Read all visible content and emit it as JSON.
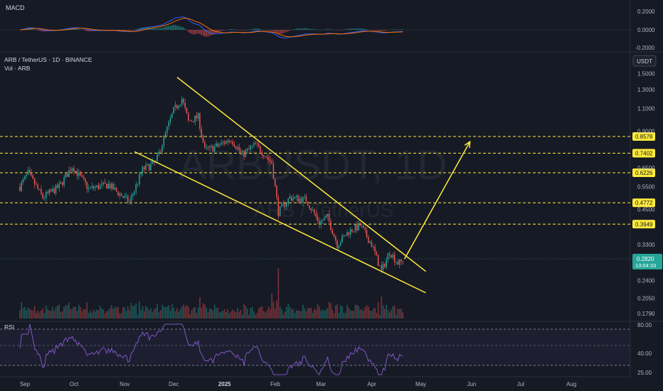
{
  "header": {
    "symbol_line": "ARB / TetherUS · 1D · BINANCE",
    "volume_label": "Vol · ARB",
    "currency_button": "USDT"
  },
  "watermark": {
    "main": "ARBUSDT, 1D",
    "sub": "ARB / TetherUS"
  },
  "macd_panel": {
    "label": "MACD",
    "ticks": [
      "0.2000",
      "0.0000",
      "-0.2000"
    ],
    "tick_values": [
      0.2,
      0.0,
      -0.2
    ]
  },
  "rsi_panel": {
    "label": "RSI",
    "ticks": [
      "80.00",
      "40.00",
      "25.00"
    ],
    "tick_values": [
      80,
      40,
      25
    ]
  },
  "price_axis": {
    "ticks": [
      "1.5000",
      "1.3000",
      "1.1000",
      "0.9000",
      "0.6500",
      "0.5500",
      "0.4500",
      "0.3300",
      "0.2400",
      "0.2050",
      "0.1790"
    ],
    "tick_values": [
      1.5,
      1.3,
      1.1,
      0.9,
      0.65,
      0.55,
      0.45,
      0.33,
      0.24,
      0.205,
      0.179
    ]
  },
  "levels": [
    {
      "label": "0.8578",
      "value": 0.8578
    },
    {
      "label": "0.7402",
      "value": 0.7402
    },
    {
      "label": "0.6226",
      "value": 0.6226
    },
    {
      "label": "0.4772",
      "value": 0.4772
    },
    {
      "label": "0.3949",
      "value": 0.3949
    }
  ],
  "current_price": {
    "label": "0.2820",
    "countdown": "13:04:33",
    "value": 0.282
  },
  "time_axis": {
    "labels": [
      "Sep",
      "Oct",
      "Nov",
      "Dec",
      "2025",
      "Feb",
      "Mar",
      "Apr",
      "May",
      "Jun",
      "Jul",
      "Aug"
    ]
  },
  "colors": {
    "background": "#161a25",
    "up": "#26a69a",
    "down": "#ef5350",
    "drawing": "#ffeb3b",
    "macd": "#2962ff",
    "signal": "#ff6d00",
    "rsi": "#7e57c2",
    "grid": "#2a2e39",
    "axis_text": "#b2b5be"
  },
  "chart_data": {
    "type": "candlestick",
    "symbol": "ARB / TetherUS",
    "interval": "1D",
    "exchange": "BINANCE",
    "price_scale": "log",
    "ylim": [
      0.175,
      1.6
    ],
    "x_labels": [
      "Sep",
      "Oct",
      "Nov",
      "Dec",
      "2025",
      "Feb",
      "Mar",
      "Apr",
      "May",
      "Jun",
      "Jul",
      "Aug"
    ],
    "price_anchors": [
      {
        "date": "2024-08-29",
        "close": 0.55
      },
      {
        "date": "2024-09-03",
        "close": 0.62
      },
      {
        "date": "2024-09-12",
        "close": 0.5
      },
      {
        "date": "2024-09-22",
        "close": 0.55
      },
      {
        "date": "2024-09-30",
        "close": 0.66
      },
      {
        "date": "2024-10-10",
        "close": 0.54
      },
      {
        "date": "2024-10-22",
        "close": 0.56
      },
      {
        "date": "2024-11-04",
        "close": 0.48
      },
      {
        "date": "2024-11-12",
        "close": 0.64
      },
      {
        "date": "2024-11-20",
        "close": 0.68
      },
      {
        "date": "2024-11-26",
        "close": 0.88
      },
      {
        "date": "2024-12-01",
        "close": 1.08
      },
      {
        "date": "2024-12-06",
        "close": 1.2
      },
      {
        "date": "2024-12-10",
        "close": 0.98
      },
      {
        "date": "2024-12-16",
        "close": 1.02
      },
      {
        "date": "2024-12-20",
        "close": 0.76
      },
      {
        "date": "2024-12-26",
        "close": 0.78
      },
      {
        "date": "2025-01-05",
        "close": 0.84
      },
      {
        "date": "2025-01-12",
        "close": 0.73
      },
      {
        "date": "2025-01-20",
        "close": 0.8
      },
      {
        "date": "2025-01-30",
        "close": 0.68
      },
      {
        "date": "2025-02-03",
        "close": 0.44
      },
      {
        "date": "2025-02-10",
        "close": 0.5
      },
      {
        "date": "2025-02-20",
        "close": 0.49
      },
      {
        "date": "2025-02-28",
        "close": 0.4
      },
      {
        "date": "2025-03-05",
        "close": 0.42
      },
      {
        "date": "2025-03-11",
        "close": 0.33
      },
      {
        "date": "2025-03-18",
        "close": 0.37
      },
      {
        "date": "2025-03-25",
        "close": 0.39
      },
      {
        "date": "2025-04-01",
        "close": 0.33
      },
      {
        "date": "2025-04-07",
        "close": 0.26
      },
      {
        "date": "2025-04-12",
        "close": 0.31
      },
      {
        "date": "2025-04-17",
        "close": 0.28
      },
      {
        "date": "2025-04-20",
        "close": 0.282
      }
    ],
    "wedge": {
      "upper": [
        {
          "date": "2024-12-03",
          "price": 1.45
        },
        {
          "date": "2025-05-04",
          "price": 0.26
        }
      ],
      "lower": [
        {
          "date": "2024-11-07",
          "price": 0.75
        },
        {
          "date": "2025-05-04",
          "price": 0.215
        }
      ]
    },
    "projection_arrow": [
      {
        "date": "2025-04-21",
        "price": 0.29
      },
      {
        "date": "2025-05-31",
        "price": 0.82
      }
    ],
    "horizontal_levels": [
      0.8578,
      0.7402,
      0.6226,
      0.4772,
      0.3949
    ],
    "current_price": 0.282,
    "macd": {
      "ylim": [
        -0.2,
        0.2
      ],
      "ticks": [
        0.2,
        0.0,
        -0.2
      ]
    },
    "rsi": {
      "ylim": [
        25,
        80
      ],
      "ticks": [
        80,
        40,
        25
      ]
    }
  }
}
